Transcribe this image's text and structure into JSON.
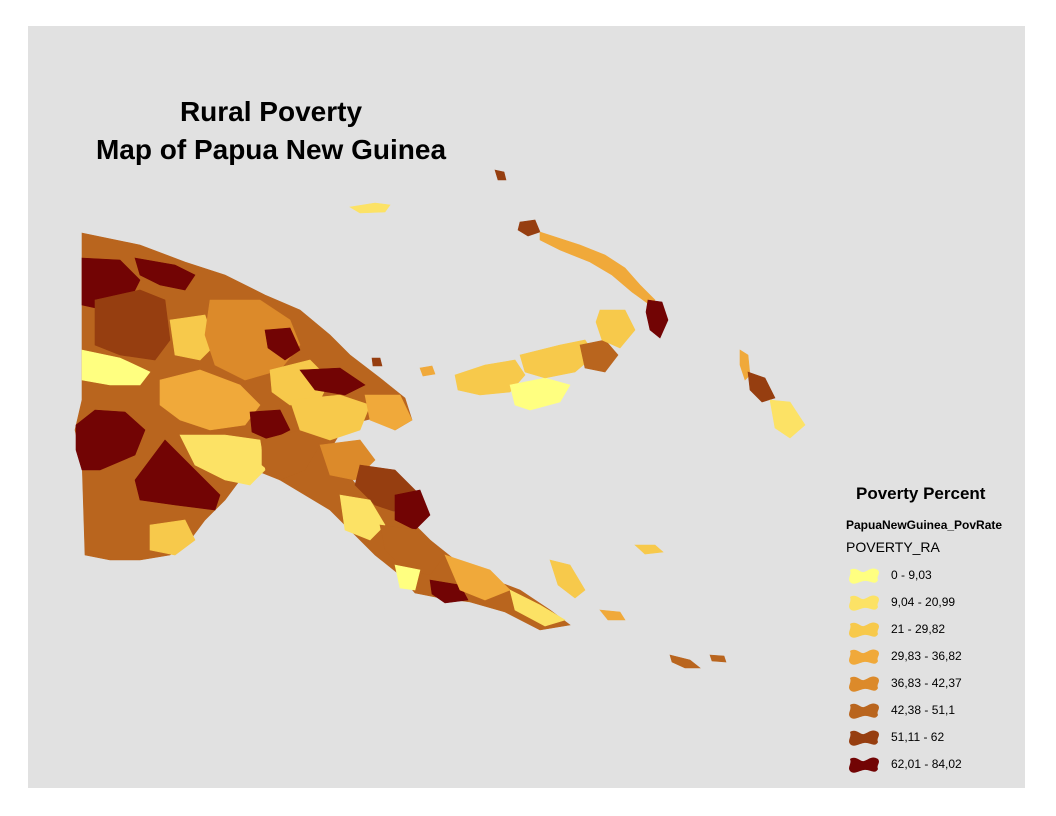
{
  "title": {
    "line1": "Rural Poverty",
    "line2": "Map of Papua New Guinea"
  },
  "legend": {
    "heading": "Poverty Percent",
    "layer": "PapuaNewGuinea_PovRate",
    "field": "POVERTY_RA",
    "classes": [
      {
        "label": "0 - 9,03",
        "color": "#ffff80"
      },
      {
        "label": "9,04 - 20,99",
        "color": "#fce265"
      },
      {
        "label": "21 - 29,82",
        "color": "#f7c94b"
      },
      {
        "label": "29,83 - 36,82",
        "color": "#f0a93a"
      },
      {
        "label": "36,83 - 42,37",
        "color": "#dc8a2a"
      },
      {
        "label": "42,38 - 51,1",
        "color": "#b9651e"
      },
      {
        "label": "51,11 - 62",
        "color": "#963e10"
      },
      {
        "label": "62,01 - 84,02",
        "color": "#720404"
      }
    ]
  }
}
